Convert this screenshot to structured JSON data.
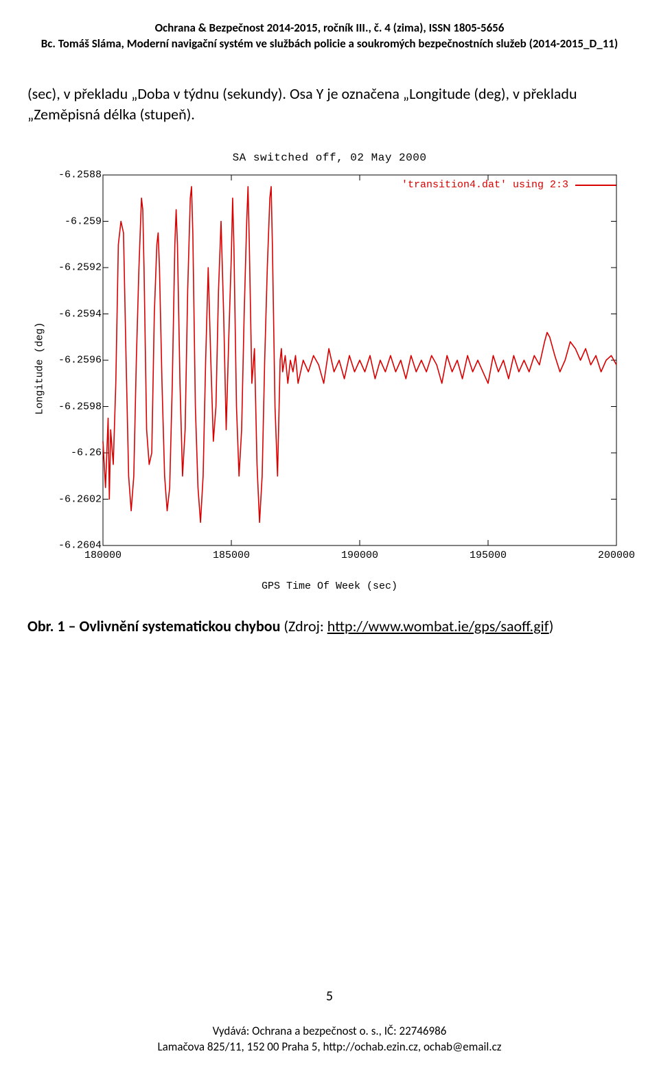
{
  "header": {
    "line1": "Ochrana & Bezpečnost 2014-2015, ročník III., č. 4 (zima), ISSN 1805-5656",
    "line2": "Bc. Tomáš Sláma, Moderní navigační systém ve službách policie a soukromých bezpečnostních služeb (2014-2015_D_11)"
  },
  "body": {
    "paragraph": "(sec), v překladu „Doba v týdnu (sekundy). Osa Y je označena „Longitude (deg), v překladu „Zeměpisná délka (stupeň)."
  },
  "chart": {
    "type": "line",
    "title": "SA switched off, 02 May 2000",
    "legend": "'transition4.dat' using 2:3",
    "xlabel": "GPS Time Of Week (sec)",
    "ylabel": "Longitude (deg)",
    "xlim": [
      180000,
      200000
    ],
    "ylim": [
      -6.2604,
      -6.2588
    ],
    "x_ticks": [
      180000,
      185000,
      190000,
      195000,
      200000
    ],
    "y_ticks": [
      -6.2604,
      -6.2602,
      -6.26,
      -6.2598,
      -6.2596,
      -6.2594,
      -6.2592,
      -6.259,
      -6.2588
    ],
    "y_tick_labels": [
      "-6.2604",
      "-6.2602",
      "-6.26",
      "-6.2598",
      "-6.2596",
      "-6.2594",
      "-6.2592",
      "-6.259",
      "-6.2588"
    ],
    "line_color": "#d90000",
    "line_width": 1.6,
    "background_color": "#ffffff",
    "axis_color": "#000000",
    "font_family": "Courier New",
    "tick_font_size": 15,
    "title_font_size": 16,
    "series": [
      [
        180000,
        -6.25995
      ],
      [
        180100,
        -6.26015
      ],
      [
        180200,
        -6.25985
      ],
      [
        180250,
        -6.2602
      ],
      [
        180300,
        -6.2599
      ],
      [
        180400,
        -6.26005
      ],
      [
        180500,
        -6.2597
      ],
      [
        180600,
        -6.2591
      ],
      [
        180700,
        -6.259
      ],
      [
        180800,
        -6.25905
      ],
      [
        180900,
        -6.2596
      ],
      [
        181000,
        -6.2601
      ],
      [
        181100,
        -6.26025
      ],
      [
        181200,
        -6.2601
      ],
      [
        181300,
        -6.2596
      ],
      [
        181400,
        -6.2592
      ],
      [
        181500,
        -6.2589
      ],
      [
        181550,
        -6.25895
      ],
      [
        181600,
        -6.2592
      ],
      [
        181700,
        -6.2599
      ],
      [
        181800,
        -6.26005
      ],
      [
        181900,
        -6.26
      ],
      [
        182000,
        -6.2594
      ],
      [
        182100,
        -6.2591
      ],
      [
        182150,
        -6.25905
      ],
      [
        182200,
        -6.2592
      ],
      [
        182300,
        -6.2597
      ],
      [
        182400,
        -6.2601
      ],
      [
        182500,
        -6.26025
      ],
      [
        182600,
        -6.26015
      ],
      [
        182700,
        -6.2597
      ],
      [
        182800,
        -6.2591
      ],
      [
        182850,
        -6.25895
      ],
      [
        182900,
        -6.2591
      ],
      [
        183000,
        -6.2597
      ],
      [
        183100,
        -6.2601
      ],
      [
        183200,
        -6.2599
      ],
      [
        183300,
        -6.2593
      ],
      [
        183400,
        -6.2589
      ],
      [
        183450,
        -6.25885
      ],
      [
        183500,
        -6.25905
      ],
      [
        183600,
        -6.2598
      ],
      [
        183700,
        -6.26015
      ],
      [
        183800,
        -6.2603
      ],
      [
        183900,
        -6.2601
      ],
      [
        184000,
        -6.2596
      ],
      [
        184100,
        -6.2592
      ],
      [
        184200,
        -6.2596
      ],
      [
        184300,
        -6.25995
      ],
      [
        184400,
        -6.2598
      ],
      [
        184500,
        -6.2593
      ],
      [
        184600,
        -6.259
      ],
      [
        184700,
        -6.2594
      ],
      [
        184800,
        -6.2599
      ],
      [
        184900,
        -6.2595
      ],
      [
        185000,
        -6.25915
      ],
      [
        185050,
        -6.2589
      ],
      [
        185100,
        -6.2591
      ],
      [
        185200,
        -6.2598
      ],
      [
        185300,
        -6.2601
      ],
      [
        185400,
        -6.2599
      ],
      [
        185500,
        -6.2594
      ],
      [
        185600,
        -6.259
      ],
      [
        185650,
        -6.25885
      ],
      [
        185700,
        -6.2591
      ],
      [
        185800,
        -6.2597
      ],
      [
        185900,
        -6.25955
      ],
      [
        186000,
        -6.26005
      ],
      [
        186100,
        -6.2603
      ],
      [
        186200,
        -6.2601
      ],
      [
        186300,
        -6.2596
      ],
      [
        186400,
        -6.2592
      ],
      [
        186500,
        -6.2589
      ],
      [
        186550,
        -6.25885
      ],
      [
        186600,
        -6.2591
      ],
      [
        186700,
        -6.2598
      ],
      [
        186800,
        -6.2601
      ],
      [
        186900,
        -6.2596
      ],
      [
        186950,
        -6.25955
      ],
      [
        187000,
        -6.25965
      ],
      [
        187100,
        -6.25958
      ],
      [
        187200,
        -6.2597
      ],
      [
        187300,
        -6.2596
      ],
      [
        187400,
        -6.25965
      ],
      [
        187500,
        -6.25958
      ],
      [
        187600,
        -6.2597
      ],
      [
        187800,
        -6.2596
      ],
      [
        188000,
        -6.25965
      ],
      [
        188200,
        -6.25958
      ],
      [
        188400,
        -6.25962
      ],
      [
        188600,
        -6.2597
      ],
      [
        188800,
        -6.25955
      ],
      [
        189000,
        -6.25965
      ],
      [
        189200,
        -6.2596
      ],
      [
        189400,
        -6.25968
      ],
      [
        189600,
        -6.25958
      ],
      [
        189800,
        -6.25965
      ],
      [
        190000,
        -6.2596
      ],
      [
        190200,
        -6.25965
      ],
      [
        190400,
        -6.25958
      ],
      [
        190600,
        -6.25968
      ],
      [
        190800,
        -6.2596
      ],
      [
        191000,
        -6.25965
      ],
      [
        191200,
        -6.25958
      ],
      [
        191400,
        -6.25965
      ],
      [
        191600,
        -6.2596
      ],
      [
        191800,
        -6.25968
      ],
      [
        192000,
        -6.25958
      ],
      [
        192200,
        -6.25965
      ],
      [
        192400,
        -6.2596
      ],
      [
        192600,
        -6.25965
      ],
      [
        192800,
        -6.25958
      ],
      [
        193000,
        -6.25962
      ],
      [
        193200,
        -6.2597
      ],
      [
        193400,
        -6.25958
      ],
      [
        193600,
        -6.25965
      ],
      [
        193800,
        -6.2596
      ],
      [
        194000,
        -6.25968
      ],
      [
        194200,
        -6.25958
      ],
      [
        194400,
        -6.25965
      ],
      [
        194600,
        -6.2596
      ],
      [
        194800,
        -6.25965
      ],
      [
        195000,
        -6.2597
      ],
      [
        195200,
        -6.25958
      ],
      [
        195400,
        -6.25965
      ],
      [
        195600,
        -6.2596
      ],
      [
        195800,
        -6.25968
      ],
      [
        196000,
        -6.25958
      ],
      [
        196200,
        -6.25965
      ],
      [
        196400,
        -6.2596
      ],
      [
        196600,
        -6.25965
      ],
      [
        196800,
        -6.25958
      ],
      [
        197000,
        -6.25962
      ],
      [
        197200,
        -6.25952
      ],
      [
        197300,
        -6.25948
      ],
      [
        197400,
        -6.2595
      ],
      [
        197600,
        -6.25958
      ],
      [
        197800,
        -6.25965
      ],
      [
        198000,
        -6.2596
      ],
      [
        198200,
        -6.25952
      ],
      [
        198400,
        -6.25955
      ],
      [
        198600,
        -6.2596
      ],
      [
        198800,
        -6.25955
      ],
      [
        199000,
        -6.25962
      ],
      [
        199200,
        -6.25958
      ],
      [
        199400,
        -6.25965
      ],
      [
        199600,
        -6.2596
      ],
      [
        199800,
        -6.25958
      ],
      [
        200000,
        -6.25962
      ]
    ]
  },
  "caption": {
    "label": "Obr. 1 – Ovlivnění systematickou chybou",
    "source_prefix": " (Zdroj: ",
    "link_text": "http://www.wombat.ie/gps/saoff.gif",
    "source_suffix": ")"
  },
  "page_number": "5",
  "footer": {
    "line1": "Vydává: Ochrana a bezpečnost o. s., IČ: 22746986",
    "line2": "Lamačova 825/11, 152 00 Praha 5, http://ochab.ezin.cz, ochab@email.cz"
  }
}
